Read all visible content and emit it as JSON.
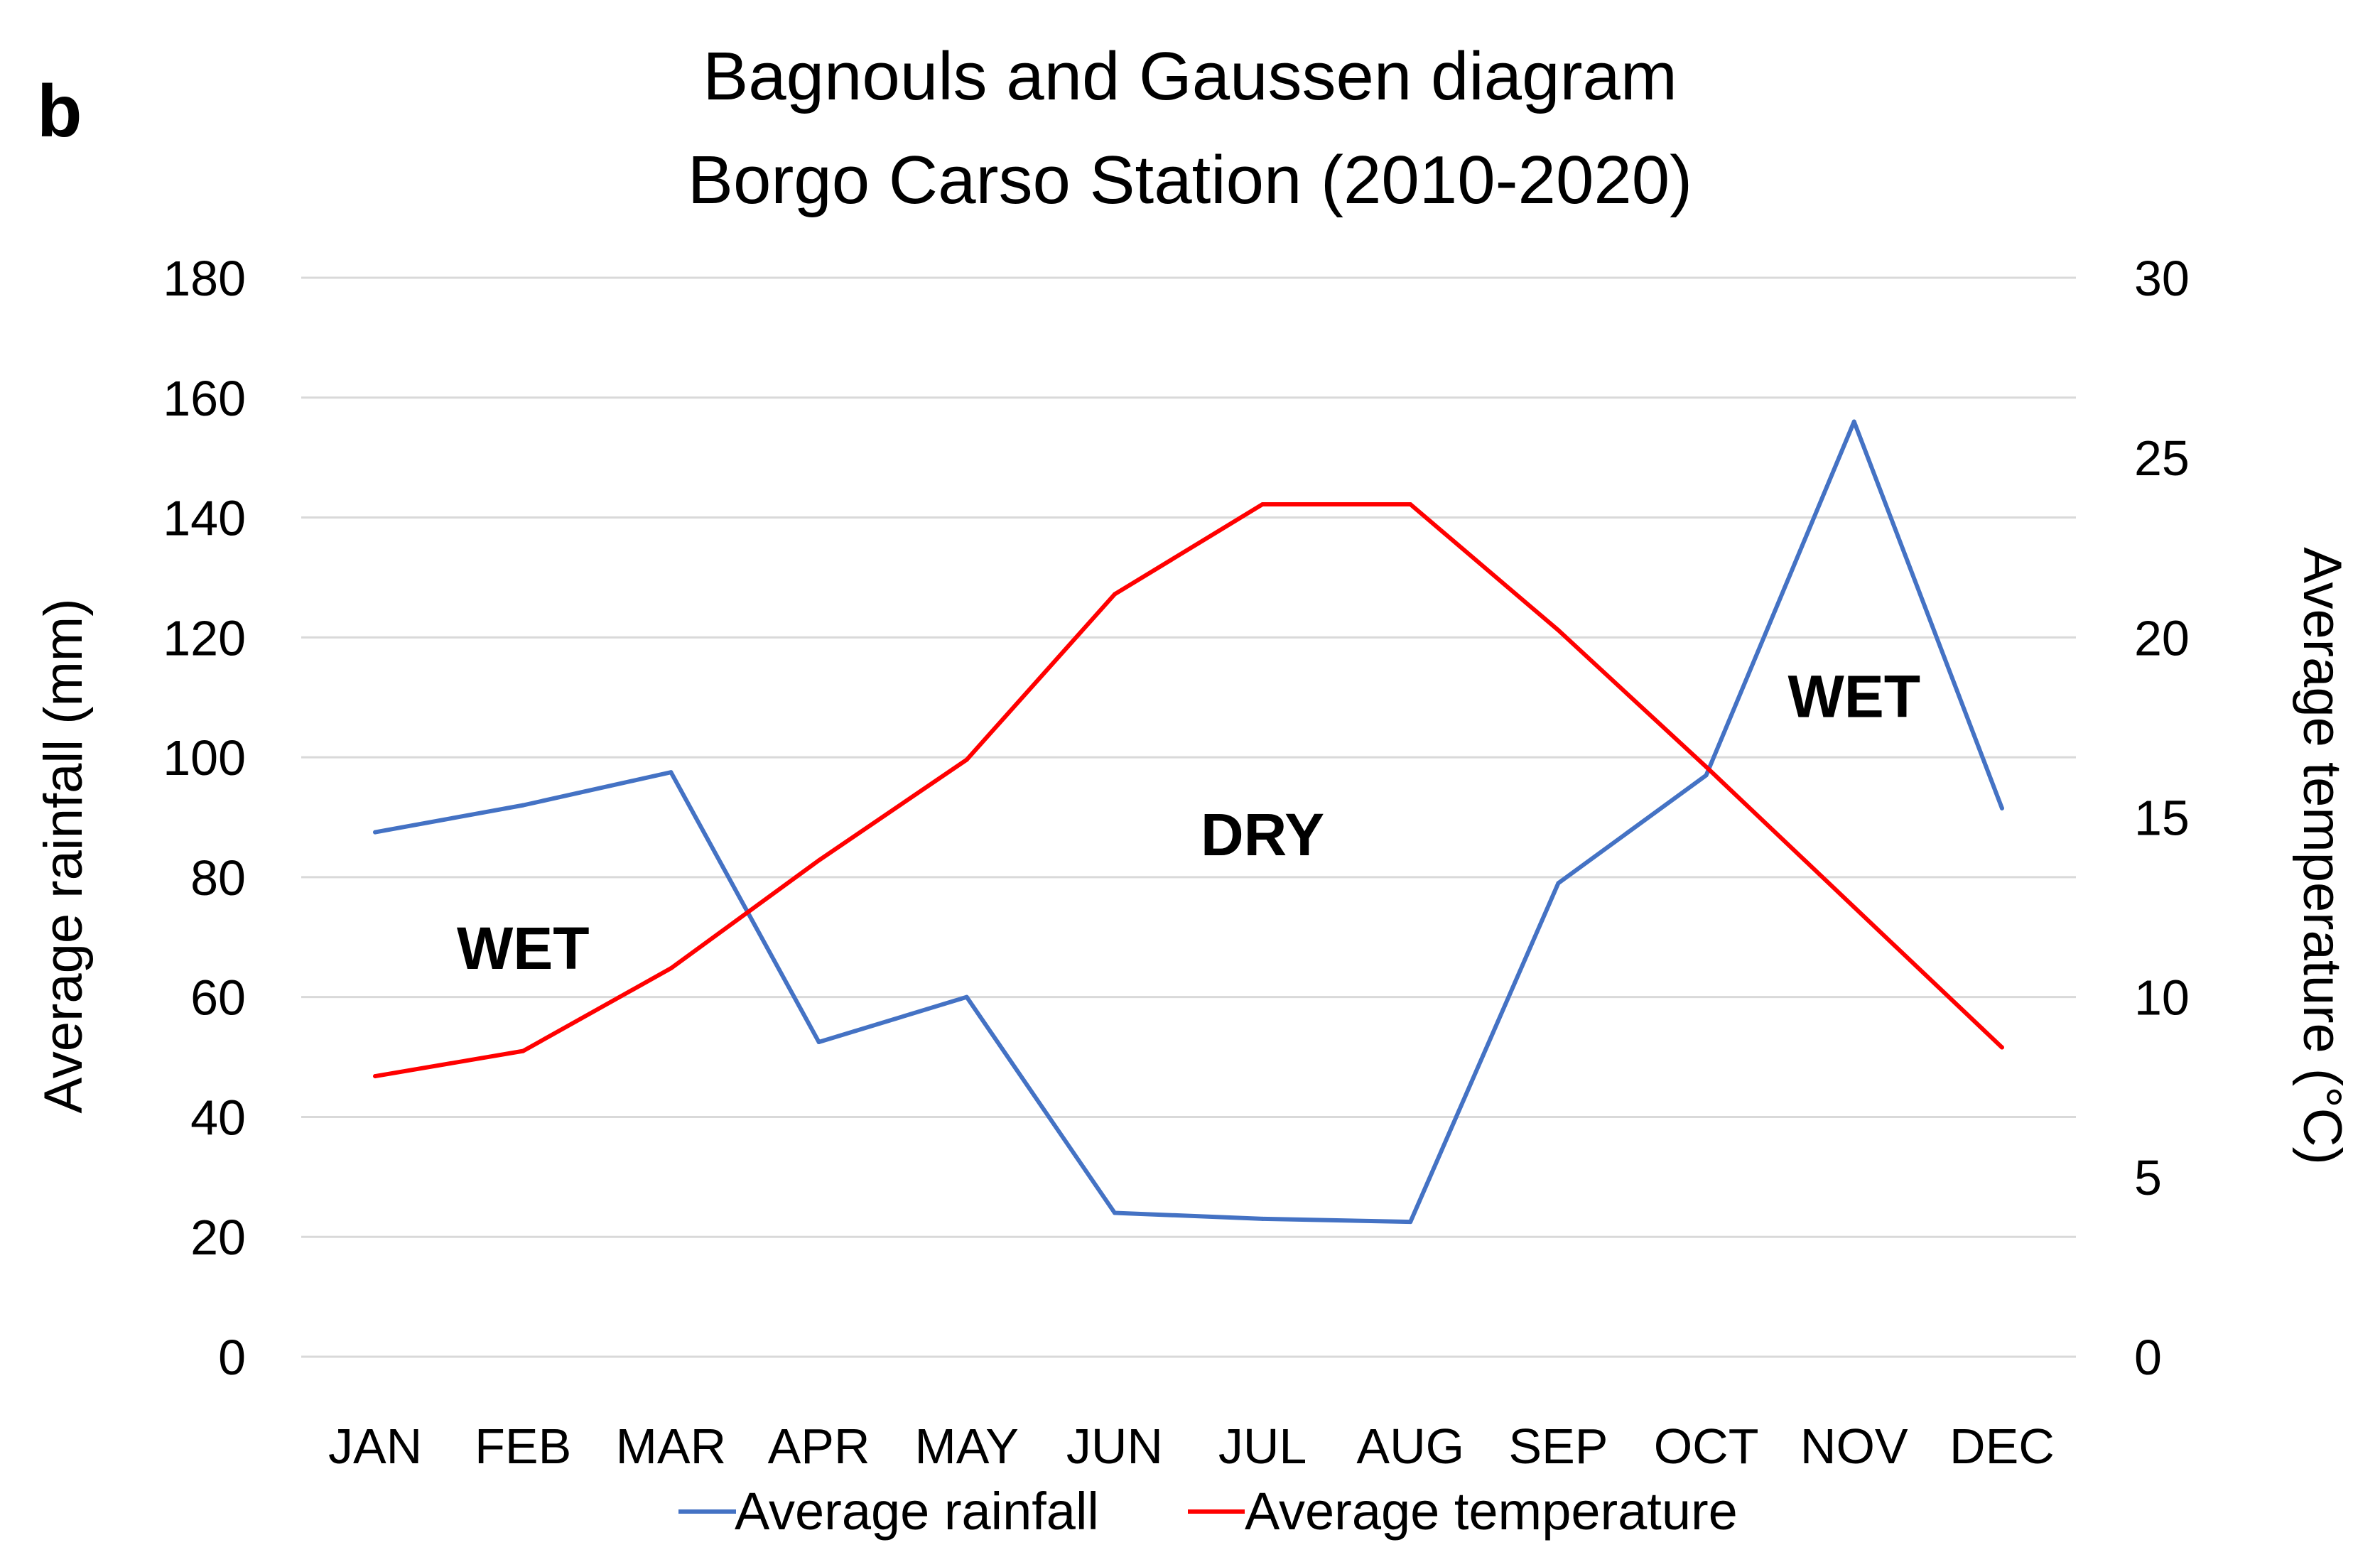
{
  "panel_label": "b",
  "chart_data": {
    "type": "line",
    "title": "Bagnouls and Gaussen diagram",
    "subtitle": "Borgo Carso Station (2010-2020)",
    "categories": [
      "JAN",
      "FEB",
      "MAR",
      "APR",
      "MAY",
      "JUN",
      "JUL",
      "AUG",
      "SEP",
      "OCT",
      "NOV",
      "DEC"
    ],
    "series": [
      {
        "name": "Average rainfall",
        "axis": "left",
        "color": "#4472C4",
        "values": [
          87.5,
          92,
          97.5,
          52.5,
          60,
          24,
          23,
          22.5,
          79,
          97,
          156,
          91.5
        ]
      },
      {
        "name": "Average temperature",
        "axis": "right",
        "color": "#FF0000",
        "values": [
          7.8,
          8.5,
          10.8,
          13.8,
          16.6,
          21.2,
          23.7,
          23.7,
          20.2,
          16.4,
          12.5,
          8.6
        ]
      }
    ],
    "ylabel": "Average rainfall (mm)",
    "ylim": [
      0,
      180
    ],
    "yticks": [
      "0",
      "20",
      "40",
      "60",
      "80",
      "100",
      "120",
      "140",
      "160",
      "180"
    ],
    "y2label": "Average temperature (°C)",
    "y2lim": [
      0,
      30
    ],
    "y2ticks": [
      "0",
      "5",
      "10",
      "15",
      "20",
      "25",
      "30"
    ],
    "grid": true,
    "gridline_color": "#D9D9D9",
    "legend_position": "bottom",
    "annotations": [
      {
        "text": "WET",
        "x_category": 1,
        "y": 68
      },
      {
        "text": "DRY",
        "x_category": 6,
        "y": 87
      },
      {
        "text": "WET",
        "x_category": 10,
        "y": 110
      }
    ]
  }
}
